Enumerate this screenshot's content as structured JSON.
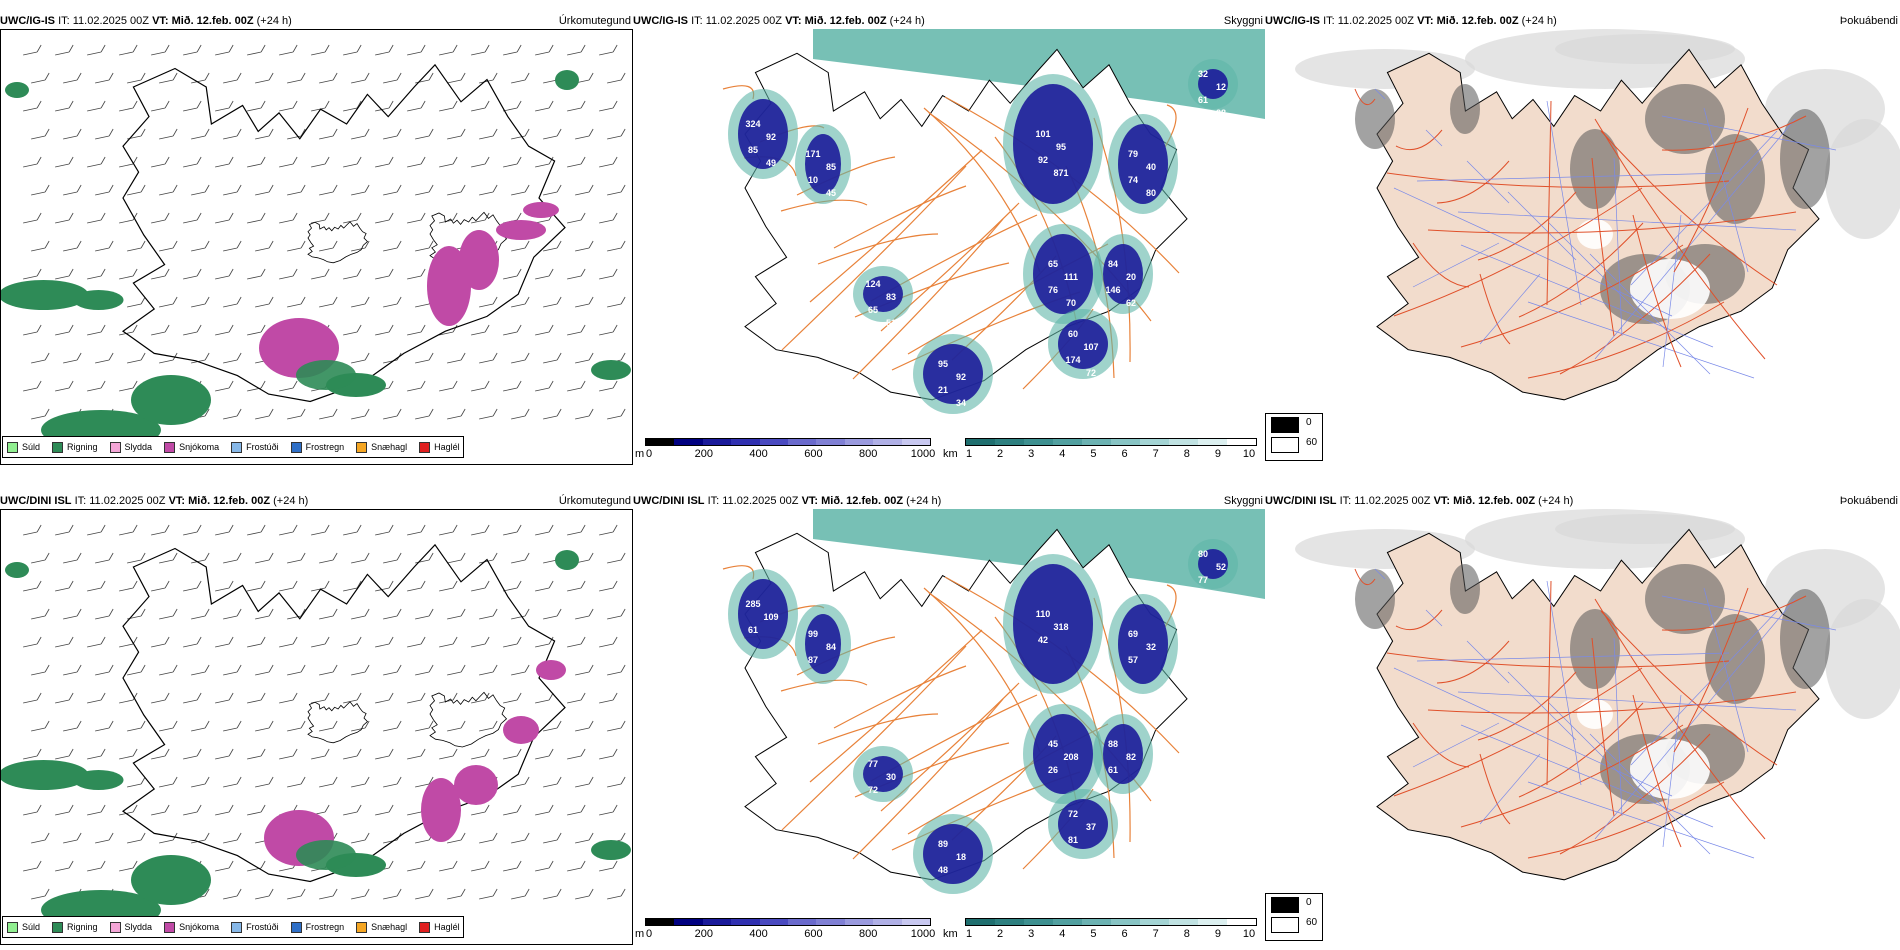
{
  "rows": [
    {
      "model": "UWC/IG-IS",
      "it_label": "IT:",
      "it_value": "11.02.2025 00Z",
      "vt_label": "VT:",
      "vt_value": "Mið. 12.feb. 00Z",
      "lead": "(+24 h)",
      "panels": {
        "precip_type_title": "Úrkomutegund",
        "visibility_title": "Skyggni",
        "fog_title": "Þokuábendi"
      },
      "visibility_numbers": [
        "324",
        "171",
        "124",
        "95",
        "101",
        "65",
        "60",
        "79",
        "84",
        "32",
        "92",
        "85",
        "83",
        "92",
        "95",
        "111",
        "107",
        "40",
        "20",
        "12",
        "85",
        "10",
        "65",
        "21",
        "92",
        "76",
        "174",
        "74",
        "146",
        "61",
        "49",
        "45",
        "51",
        "34",
        "871",
        "70",
        "72",
        "80",
        "62",
        "28"
      ]
    },
    {
      "model": "UWC/DINI ISL",
      "it_label": "IT:",
      "it_value": "11.02.2025 00Z",
      "vt_label": "VT:",
      "vt_value": "Mið. 12.feb. 00Z",
      "lead": "(+24 h)",
      "panels": {
        "precip_type_title": "Úrkomutegund",
        "visibility_title": "Skyggni",
        "fog_title": "Þokuábendi"
      },
      "visibility_numbers": [
        "285",
        "99",
        "77",
        "89",
        "110",
        "45",
        "72",
        "69",
        "88",
        "80",
        "109",
        "84",
        "30",
        "18",
        "318",
        "208",
        "37",
        "32",
        "82",
        "52",
        "61",
        "87",
        "72",
        "48",
        "42",
        "26",
        "81",
        "57",
        "61",
        "77"
      ]
    }
  ],
  "precip_legend": [
    {
      "label": "Súld",
      "color": "#90ee90"
    },
    {
      "label": "Rigning",
      "color": "#2e8b57"
    },
    {
      "label": "Slydda",
      "color": "#f4a6d7"
    },
    {
      "label": "Snjókoma",
      "color": "#c04aa6"
    },
    {
      "label": "Frostúði",
      "color": "#87b8e8"
    },
    {
      "label": "Frostregn",
      "color": "#2f6fc6"
    },
    {
      "label": "Snæhagl",
      "color": "#f5a623"
    },
    {
      "label": "Haglél",
      "color": "#e02020"
    }
  ],
  "visibility_legend_m": {
    "unit": "m",
    "ticks": [
      "0",
      "200",
      "400",
      "600",
      "800",
      "1000"
    ],
    "colors": [
      "#000000",
      "#000080",
      "#1a1a9a",
      "#3030b0",
      "#4a4ac0",
      "#6a6acc",
      "#8080d4",
      "#9a9ade",
      "#b0b0e6",
      "#c8c8f0"
    ]
  },
  "visibility_legend_km": {
    "unit": "km",
    "ticks": [
      "1",
      "2",
      "3",
      "4",
      "5",
      "6",
      "7",
      "8",
      "9",
      "10"
    ],
    "colors": [
      "#1f6f6f",
      "#2e8080",
      "#3e9090",
      "#52a0a0",
      "#6cb2b2",
      "#88c4c4",
      "#a4d4d4",
      "#c0e2e2",
      "#dcf0f0",
      "#ffffff"
    ]
  },
  "fog_legend": [
    {
      "label": "0",
      "color": "#000000"
    },
    {
      "label": "60",
      "color": "#ffffff"
    }
  ],
  "colors": {
    "rain": "#2e8b57",
    "snow": "#c04aa6",
    "vis_deep": "#1c1c9a",
    "vis_teal": "#5fb5a8",
    "road": "#e8823a",
    "land_fog": "#f2dccc",
    "coast": "#000000"
  }
}
